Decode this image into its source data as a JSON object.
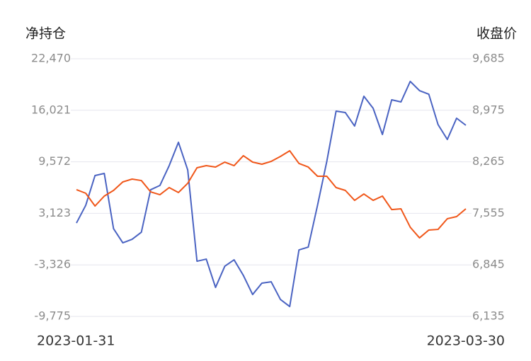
{
  "chart_data": {
    "type": "line",
    "y_label": "净持仓",
    "y2_label": "收盘价",
    "categories": [
      "2023-01-31",
      null,
      null,
      null,
      null,
      null,
      null,
      null,
      null,
      null,
      null,
      null,
      null,
      null,
      null,
      null,
      null,
      null,
      null,
      null,
      null,
      null,
      null,
      null,
      null,
      null,
      null,
      null,
      null,
      null,
      null,
      null,
      null,
      null,
      null,
      null,
      null,
      null,
      null,
      null,
      null,
      null,
      "2023-03-30"
    ],
    "series": [
      {
        "color": "#4a63c2",
        "values": [
          1915,
          4130,
          7851,
          8117,
          1206,
          -565,
          -123,
          763,
          6079,
          6611,
          9091,
          12015,
          8560,
          -2870,
          -2604,
          -6148,
          -3490,
          -2693,
          -4642,
          -7034,
          -5616,
          -5439,
          -7654,
          -8540,
          -1452,
          -1098,
          4130,
          9623,
          15914,
          15737,
          14053,
          17774,
          16268,
          12990,
          17331,
          17065,
          19635,
          18483,
          18040,
          14230,
          12370,
          15028,
          14142
        ]
      },
      {
        "color": "#f0571a",
        "axis": "y2",
        "values": [
          7881,
          7832,
          7656,
          7793,
          7871,
          7988,
          8027,
          8007,
          7851,
          7812,
          7910,
          7842,
          7969,
          8183,
          8212,
          8193,
          8261,
          8212,
          8349,
          8261,
          8232,
          8271,
          8339,
          8417,
          8242,
          8193,
          8066,
          8066,
          7910,
          7871,
          7734,
          7822,
          7734,
          7793,
          7607,
          7617,
          7364,
          7217,
          7325,
          7334,
          7481,
          7510,
          7617
        ]
      }
    ],
    "ylim": [
      -9775,
      22470
    ],
    "yticks": [
      {
        "value": 22470,
        "label": "22,470"
      },
      {
        "value": 16021,
        "label": "16,021"
      },
      {
        "value": 9572,
        "label": "9,572"
      },
      {
        "value": 3123,
        "label": "3,123"
      },
      {
        "value": -3326,
        "label": "-3,326"
      },
      {
        "value": -9775,
        "label": "-9,775"
      }
    ],
    "y2lim": [
      6135,
      9685
    ],
    "y2ticks": [
      {
        "value": 9685,
        "label": "9,685"
      },
      {
        "value": 8975,
        "label": "8,975"
      },
      {
        "value": 8265,
        "label": "8,265"
      },
      {
        "value": 7555,
        "label": "7,555"
      },
      {
        "value": 6845,
        "label": "6,845"
      },
      {
        "value": 6135,
        "label": "6,135"
      }
    ],
    "grid": true
  }
}
